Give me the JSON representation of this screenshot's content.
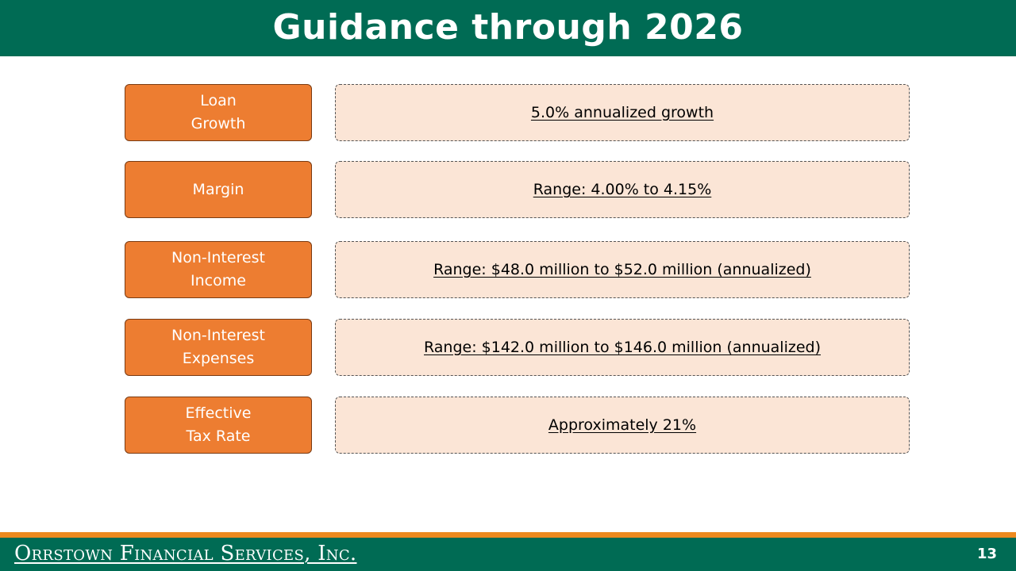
{
  "header": {
    "title": "Guidance through 2026"
  },
  "rows": [
    {
      "label": "Loan\nGrowth",
      "value": "5.0% annualized growth"
    },
    {
      "label": "Margin",
      "value": "Range: 4.00% to 4.15%"
    },
    {
      "label": "Non-Interest\nIncome",
      "value": "Range: $48.0 million to $52.0 million (annualized)"
    },
    {
      "label": "Non-Interest\nExpenses",
      "value": "Range: $142.0 million to $146.0 million (annualized)"
    },
    {
      "label": "Effective\nTax Rate",
      "value": "Approximately 21%"
    }
  ],
  "footer": {
    "company": "Orrstown Financial Services, Inc.",
    "page_number": "13"
  },
  "colors": {
    "brand_green": "#006B54",
    "accent_orange": "#ED7D31",
    "value_fill": "#FBE5D6",
    "footer_stripe": "#ED8A1F"
  }
}
